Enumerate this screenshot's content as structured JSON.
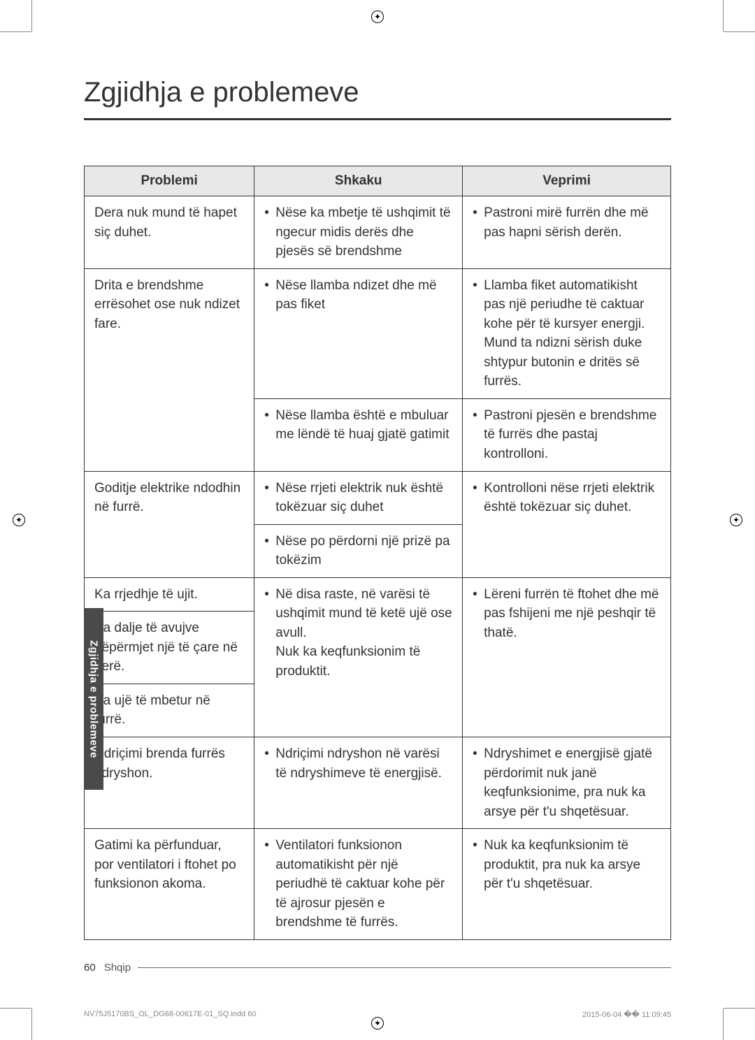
{
  "title": "Zgjidhja e problemeve",
  "side_tab": "Zgjidhja e problemeve",
  "table": {
    "headers": {
      "problem": "Problemi",
      "cause": "Shkaku",
      "action": "Veprimi"
    },
    "rows": {
      "r1": {
        "problem": "Dera nuk mund të hapet siç duhet.",
        "cause": "Nëse ka mbetje të ushqimit të ngecur midis derës dhe pjesës së brendshme",
        "action": "Pastroni mirë furrën dhe më pas hapni sërish derën."
      },
      "r2": {
        "problem": "Drita e brendshme errësohet ose nuk ndizet fare.",
        "cause1": "Nëse llamba ndizet dhe më pas fiket",
        "action1": "Llamba fiket automatikisht pas një periudhe të caktuar kohe për të kursyer energji. Mund ta ndizni sërish duke shtypur butonin e dritës së furrës.",
        "cause2": "Nëse llamba është e mbuluar me lëndë të huaj gjatë gatimit",
        "action2": "Pastroni pjesën e brendshme të furrës dhe pastaj kontrolloni."
      },
      "r3": {
        "problem": "Goditje elektrike ndodhin në furrë.",
        "cause1": "Nëse rrjeti elektrik nuk është tokëzuar siç duhet",
        "cause2": "Nëse po përdorni një prizë pa tokëzim",
        "action": "Kontrolloni nëse rrjeti elektrik është tokëzuar siç duhet."
      },
      "r4": {
        "problem1": "Ka rrjedhje të ujit.",
        "problem2": "Ka dalje të avujve nëpërmjet një të çare në derë.",
        "problem3": "Ka ujë të mbetur në furrë.",
        "cause": "Në disa raste, në varësi të ushqimit mund të ketë ujë ose avull.\nNuk ka keqfunksionim të produktit.",
        "action": "Lëreni furrën të ftohet dhe më pas fshijeni me një peshqir të thatë."
      },
      "r5": {
        "problem": "Ndriçimi brenda furrës ndryshon.",
        "cause": "Ndriçimi ndryshon në varësi të ndryshimeve të energjisë.",
        "action": "Ndryshimet e energjisë gjatë përdorimit nuk janë keqfunksionime, pra nuk ka arsye për t'u shqetësuar."
      },
      "r6": {
        "problem": "Gatimi ka përfunduar, por ventilatori i ftohet po funksionon akoma.",
        "cause": "Ventilatori funksionon automatikisht për një periudhë të caktuar kohe për të ajrosur pjesën e brendshme të furrës.",
        "action": "Nuk ka keqfunksionim të produktit, pra nuk ka arsye për t'u shqetësuar."
      }
    }
  },
  "footer": {
    "page": "60",
    "lang": "Shqip"
  },
  "print_footer": {
    "file": "NV75J5170BS_OL_DG68-00617E-01_SQ.indd   60",
    "date": "2015-06-04   �� 11:09:45"
  },
  "colors": {
    "header_bg": "#e8e8e8",
    "border": "#333333",
    "text": "#333333",
    "tab_bg": "#4a4a4a",
    "tab_text": "#ffffff"
  }
}
